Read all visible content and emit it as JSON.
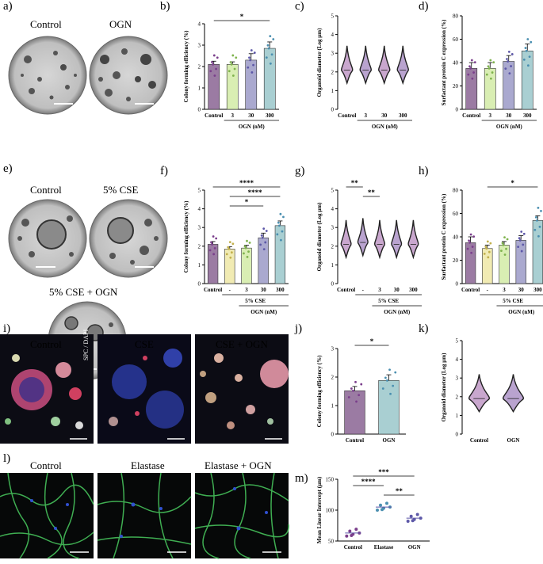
{
  "panels": {
    "a": "a)",
    "b": "b)",
    "c": "c)",
    "d": "d)",
    "e": "e)",
    "f": "f)",
    "g": "g)",
    "h": "h)",
    "i": "i)",
    "j": "j)",
    "k": "k)",
    "l": "l)",
    "m": "m)"
  },
  "image_labels": {
    "a_control": "Control",
    "a_ogn": "OGN",
    "e_control": "Control",
    "e_cse": "5% CSE",
    "e_cse_ogn": "5% CSE + OGN",
    "i_control": "Control",
    "i_cse": "CSE",
    "i_cse_ogn": "CSE + OGN",
    "i_stain": "SPC / DAPI",
    "l_control": "Control",
    "l_elastase": "Elastase",
    "l_elastase_ogn": "Elastase + OGN"
  },
  "colors": {
    "control": "#9b7ba3",
    "c3": "#d9eeb3",
    "c30": "#aaa9cf",
    "c300": "#a9cfd2",
    "cse": "#f1ebb3",
    "violin": "#c9a7ce",
    "violin2": "#b9a3cf"
  },
  "chart_data": [
    {
      "id": "b",
      "type": "bar",
      "ylabel": "Colony forming efficiency (%)",
      "ylim": [
        0,
        4
      ],
      "yticks": [
        0,
        1,
        2,
        3,
        4
      ],
      "categories": [
        "Control",
        "3",
        "30",
        "300"
      ],
      "values": [
        2.1,
        2.1,
        2.3,
        2.85
      ],
      "errors": [
        0.15,
        0.12,
        0.3,
        0.3
      ],
      "group_label": "OGN (nM)",
      "sig": [
        {
          "from": 0,
          "to": 3,
          "label": "*"
        }
      ]
    },
    {
      "id": "c",
      "type": "violin",
      "ylabel": "Organoid diameter (Log μm)",
      "ylim": [
        0,
        5
      ],
      "yticks": [
        0,
        1,
        2,
        3,
        4,
        5
      ],
      "categories": [
        "Control",
        "3",
        "30",
        "300"
      ],
      "values": [
        2.1,
        2.1,
        2.1,
        2.1
      ],
      "group_label": "OGN (nM)"
    },
    {
      "id": "d",
      "type": "bar",
      "ylabel": "Surfactant protein C expression (%)",
      "ylim": [
        0,
        80
      ],
      "yticks": [
        0,
        20,
        40,
        60,
        80
      ],
      "categories": [
        "Control",
        "3",
        "30",
        "300"
      ],
      "values": [
        35,
        35,
        41,
        50
      ],
      "errors": [
        5,
        5,
        5,
        6
      ],
      "group_label": "OGN (nM)"
    },
    {
      "id": "f",
      "type": "bar",
      "ylabel": "Colony forming efficiency (%)",
      "ylim": [
        0,
        5
      ],
      "yticks": [
        0,
        1,
        2,
        3,
        4,
        5
      ],
      "categories": [
        "Control",
        "-",
        "3",
        "30",
        "300"
      ],
      "values": [
        2.1,
        1.85,
        1.9,
        2.45,
        3.1
      ],
      "errors": [
        0.15,
        0.12,
        0.15,
        0.25,
        0.25
      ],
      "group_label": "5% CSE",
      "group_label2": "OGN (nM)",
      "sig": [
        {
          "from": 0,
          "to": 4,
          "label": "****"
        },
        {
          "from": 1,
          "to": 4,
          "label": "****"
        },
        {
          "from": 1,
          "to": 3,
          "label": "*"
        }
      ]
    },
    {
      "id": "g",
      "type": "violin",
      "ylabel": "Organoid diameter (Log μm)",
      "ylim": [
        0,
        5
      ],
      "yticks": [
        0,
        1,
        2,
        3,
        4,
        5
      ],
      "categories": [
        "Control",
        "-",
        "3",
        "30",
        "300"
      ],
      "values": [
        2.1,
        2.2,
        2.1,
        2.1,
        2.1
      ],
      "group_label": "5% CSE",
      "group_label2": "OGN (nM)",
      "sig": [
        {
          "from": 0,
          "to": 1,
          "label": "**"
        },
        {
          "from": 1,
          "to": 2,
          "label": "**"
        }
      ]
    },
    {
      "id": "h",
      "type": "bar",
      "ylabel": "Surfactant protein C expression (%)",
      "ylim": [
        0,
        80
      ],
      "yticks": [
        0,
        20,
        40,
        60,
        80
      ],
      "categories": [
        "Control",
        "-",
        "3",
        "30",
        "300"
      ],
      "values": [
        35,
        30,
        33,
        37,
        54
      ],
      "errors": [
        5,
        3,
        3,
        4,
        4
      ],
      "group_label": "5% CSE",
      "group_label2": "OGN (nM)",
      "sig": [
        {
          "from": 1,
          "to": 4,
          "label": "*"
        }
      ]
    },
    {
      "id": "j",
      "type": "bar",
      "ylabel": "Colony forming efficiency (%)",
      "ylim": [
        0,
        3
      ],
      "yticks": [
        0,
        1,
        2,
        3
      ],
      "categories": [
        "Control",
        "OGN"
      ],
      "values": [
        1.52,
        1.88
      ],
      "errors": [
        0.15,
        0.2
      ],
      "sig": [
        {
          "from": 0,
          "to": 1,
          "label": "*"
        }
      ]
    },
    {
      "id": "k",
      "type": "violin",
      "ylabel": "Organoid diameter (Log μm)",
      "ylim": [
        0,
        5
      ],
      "yticks": [
        0,
        1,
        2,
        3,
        4,
        5
      ],
      "categories": [
        "Control",
        "OGN"
      ],
      "values": [
        1.9,
        1.9
      ]
    },
    {
      "id": "m",
      "type": "scatter",
      "ylabel": "Mean Linear Intercept (μm)",
      "ylim": [
        50,
        150
      ],
      "yticks": [
        50,
        100,
        150
      ],
      "categories": [
        "Control",
        "Elastase",
        "OGN"
      ],
      "values": [
        63,
        105,
        87
      ],
      "sig": [
        {
          "from": 0,
          "to": 2,
          "label": "***"
        },
        {
          "from": 0,
          "to": 1,
          "label": "****"
        },
        {
          "from": 1,
          "to": 2,
          "label": "**"
        }
      ]
    }
  ]
}
